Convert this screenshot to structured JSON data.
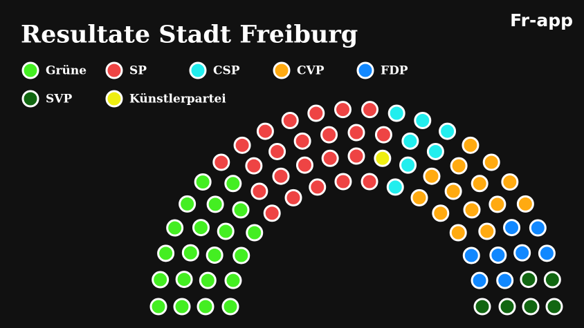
{
  "logo": "Fr-app",
  "chart_data": {
    "type": "parliament",
    "title": "Resultate Stadt Freiburg",
    "categories": [
      "Grüne",
      "SP",
      "CSP",
      "CVP",
      "FDP",
      "SVP",
      "Künstlerpartei"
    ],
    "values": [
      21,
      23,
      7,
      14,
      8,
      6,
      1
    ],
    "colors": [
      "#44ee22",
      "#ee4444",
      "#22eeee",
      "#ffaa11",
      "#1188ff",
      "#116611",
      "#eeee11"
    ],
    "seat_order": [
      0,
      1,
      6,
      2,
      3,
      4,
      5
    ]
  }
}
